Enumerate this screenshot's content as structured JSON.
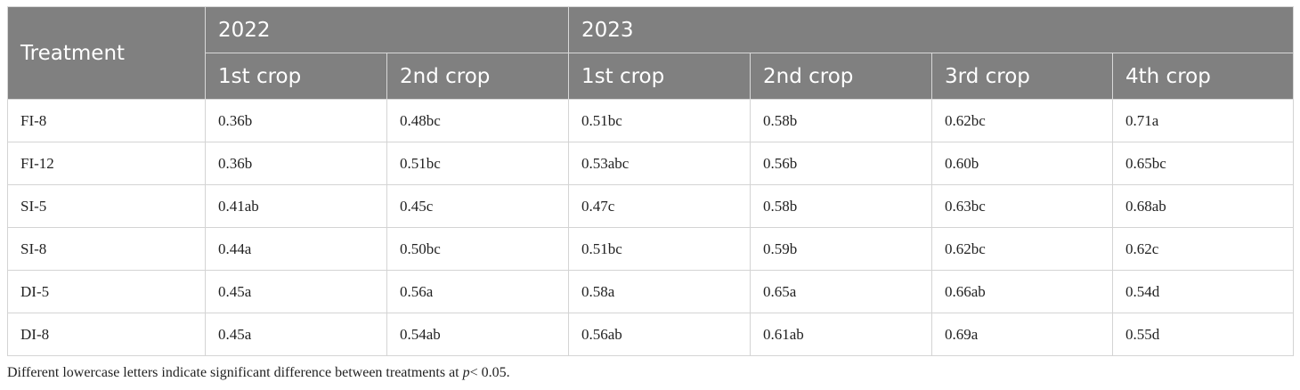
{
  "table": {
    "header": {
      "treatment": "Treatment",
      "years": [
        "2022",
        "2023"
      ],
      "crops": [
        "1st crop",
        "2nd crop",
        "1st crop",
        "2nd crop",
        "3rd crop",
        "4th crop"
      ]
    },
    "rows": [
      {
        "treatment": "FI-8",
        "values": [
          "0.36b",
          "0.48bc",
          "0.51bc",
          "0.58b",
          "0.62bc",
          "0.71a"
        ]
      },
      {
        "treatment": "FI-12",
        "values": [
          "0.36b",
          "0.51bc",
          "0.53abc",
          "0.56b",
          "0.60b",
          "0.65bc"
        ]
      },
      {
        "treatment": "SI-5",
        "values": [
          "0.41ab",
          "0.45c",
          "0.47c",
          "0.58b",
          "0.63bc",
          "0.68ab"
        ]
      },
      {
        "treatment": "SI-8",
        "values": [
          "0.44a",
          "0.50bc",
          "0.51bc",
          "0.59b",
          "0.62bc",
          "0.62c"
        ]
      },
      {
        "treatment": "DI-5",
        "values": [
          "0.45a",
          "0.56a",
          "0.58a",
          "0.65a",
          "0.66ab",
          "0.54d"
        ]
      },
      {
        "treatment": "DI-8",
        "values": [
          "0.45a",
          "0.54ab",
          "0.56ab",
          "0.61ab",
          "0.69a",
          "0.55d"
        ]
      }
    ]
  },
  "footnote": {
    "text": "Different lowercase letters indicate significant difference between treatments at ",
    "p_symbol": "p",
    "threshold": "< 0.05."
  },
  "colors": {
    "header_bg": "#808080",
    "header_text": "#ffffff",
    "grid_line": "#d4d4d4"
  }
}
